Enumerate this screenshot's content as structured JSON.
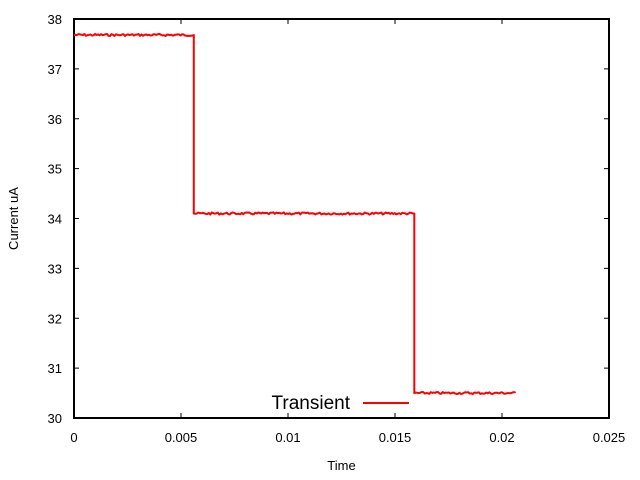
{
  "chart_data": {
    "type": "line",
    "xlabel": "Time",
    "ylabel": "Current uA",
    "xlim": [
      0,
      0.025
    ],
    "ylim": [
      30,
      38
    ],
    "x_ticks": [
      "0",
      "0.005",
      "0.01",
      "0.015",
      "0.02",
      "0.025"
    ],
    "y_ticks": [
      "30",
      "31",
      "32",
      "33",
      "34",
      "35",
      "36",
      "37",
      "38"
    ],
    "grid": false,
    "legend_position": "bottom-center",
    "series": [
      {
        "name": "Transient",
        "color": "#ff0000",
        "x": [
          0,
          0.0056,
          0.0056,
          0.0159,
          0.0159,
          0.0206
        ],
        "y": [
          37.68,
          37.68,
          34.1,
          34.1,
          30.5,
          30.5
        ]
      }
    ]
  }
}
